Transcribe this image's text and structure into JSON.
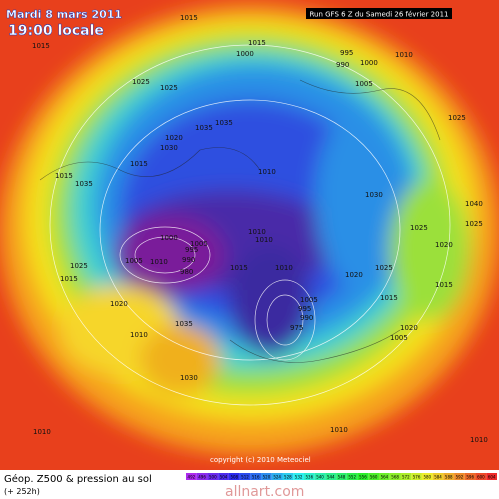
{
  "header": {
    "date": "Mardi 8 mars 2011",
    "time": "19:00 locale",
    "run": "Run GFS 6 Z du Samedi 26 février 2011"
  },
  "footer": {
    "title": "Géop. Z500 & pression au sol",
    "lead": "(+ 252h)",
    "copyright": "copyright (c) 2010 Meteociel",
    "watermark": "allnart.com"
  },
  "scale": [
    "492",
    "496",
    "500",
    "504",
    "508",
    "512",
    "516",
    "520",
    "524",
    "528",
    "532",
    "536",
    "540",
    "544",
    "548",
    "552",
    "556",
    "560",
    "564",
    "568",
    "572",
    "576",
    "580",
    "584",
    "588",
    "592",
    "596",
    "600",
    "604"
  ],
  "isobar_labels": [
    "1015",
    "1015",
    "1000",
    "1015",
    "995",
    "990",
    "1000",
    "1005",
    "1010",
    "1025",
    "1025",
    "1025",
    "1035",
    "1035",
    "1020",
    "1030",
    "1015",
    "1035",
    "1015",
    "1010",
    "1030",
    "1040",
    "1025",
    "1020",
    "1000",
    "1005",
    "995",
    "990",
    "980",
    "1010",
    "1005",
    "1010",
    "1010",
    "1015",
    "1010",
    "1005",
    "995",
    "990",
    "975",
    "1020",
    "1025",
    "1015",
    "1020",
    "1015",
    "1025",
    "1025",
    "1015",
    "1020",
    "1035",
    "1010",
    "1030",
    "1005",
    "1010",
    "1010",
    "1010"
  ]
}
